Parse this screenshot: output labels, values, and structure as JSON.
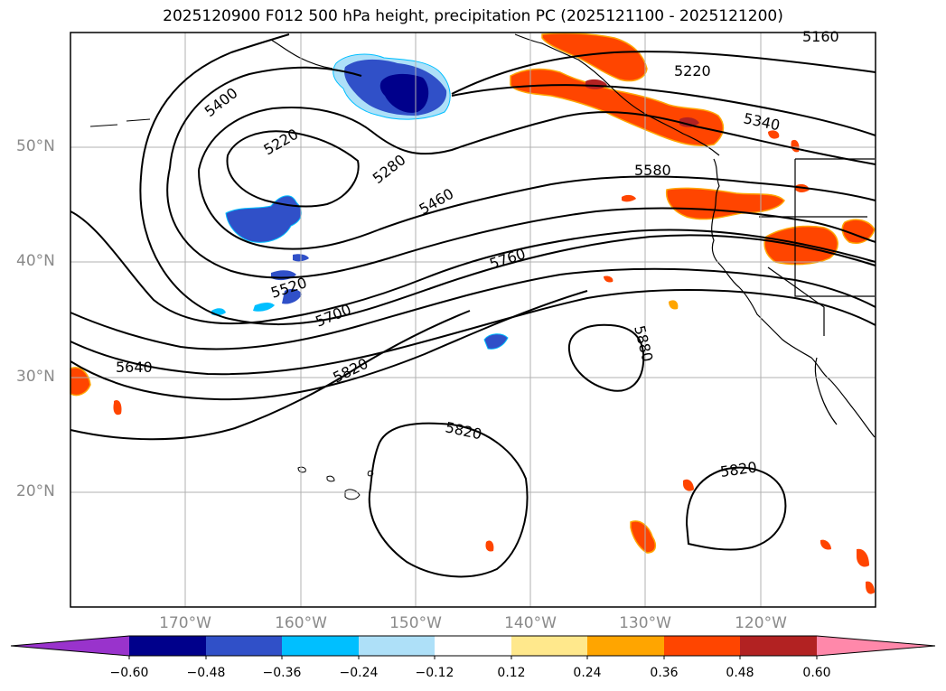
{
  "title": "2025120900 F012 500 hPa height, precipitation PC (2025121100 - 2025121200)",
  "map": {
    "region": "North Pacific / Western North America",
    "lat_range": [
      10,
      60
    ],
    "lon_range": [
      -180,
      -110
    ],
    "lat_labels": [
      "50°N",
      "40°N",
      "30°N",
      "20°N"
    ],
    "lon_labels": [
      "170°W",
      "160°W",
      "150°W",
      "140°W",
      "130°W",
      "120°W"
    ],
    "contour_labels": [
      "5160",
      "5220",
      "5340",
      "5400",
      "5220",
      "5280",
      "5460",
      "5580",
      "5760",
      "5520",
      "5700",
      "5640",
      "5820",
      "5880",
      "5820",
      "5820"
    ]
  },
  "colorbar": {
    "ticks": [
      "−0.60",
      "−0.48",
      "−0.36",
      "−0.24",
      "−0.12",
      "0.12",
      "0.24",
      "0.36",
      "0.48",
      "0.60"
    ],
    "colors": [
      "#9933cc",
      "#00008b",
      "#3050c8",
      "#00bfff",
      "#aee0f8",
      "#ffffff",
      "#ffe88c",
      "#ffa500",
      "#ff4500",
      "#b22222",
      "#ff88aa"
    ]
  }
}
